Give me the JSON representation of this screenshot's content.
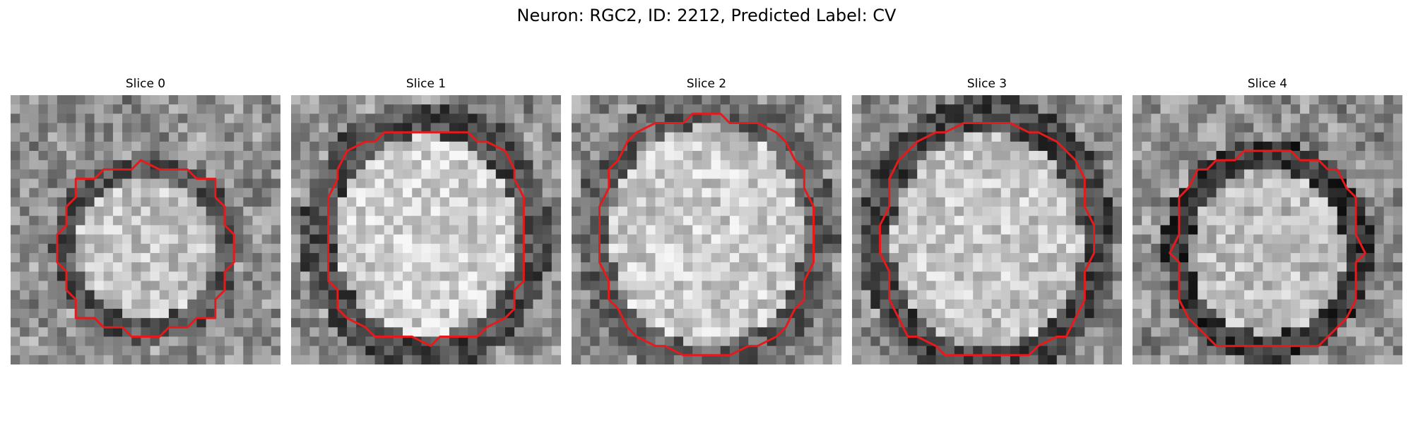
{
  "figure": {
    "title": "Neuron: RGC2, ID: 2212, Predicted Label: CV"
  },
  "contour_color": "#e41a1c",
  "slices": [
    {
      "label": "Slice 0"
    },
    {
      "label": "Slice 1"
    },
    {
      "label": "Slice 2"
    },
    {
      "label": "Slice 3"
    },
    {
      "label": "Slice 4"
    }
  ]
}
